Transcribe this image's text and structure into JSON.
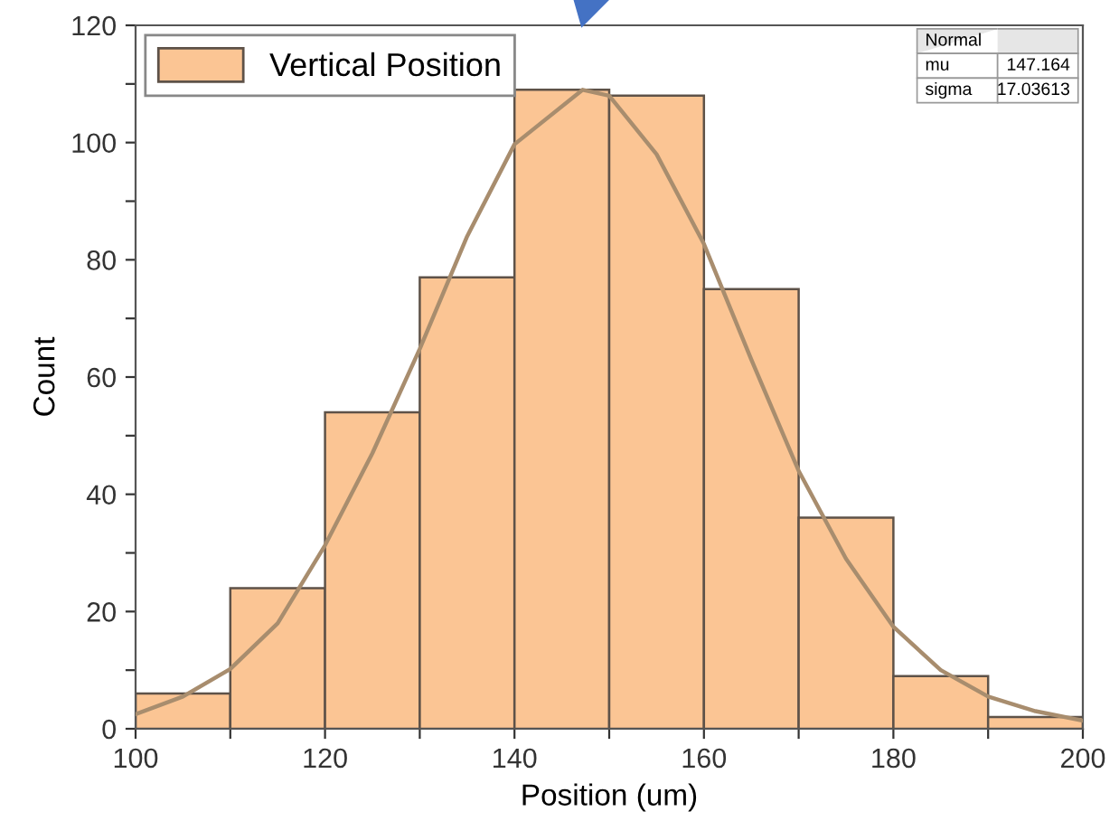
{
  "chart_data": {
    "type": "histogram",
    "xlabel": "Position (um)",
    "ylabel": "Count",
    "bins": [
      100,
      110,
      120,
      130,
      140,
      150,
      160,
      170,
      180,
      190,
      200
    ],
    "series": [
      {
        "name": "Vertical Position",
        "color": "#fbc594",
        "values": [
          6,
          24,
          54,
          77,
          109,
          108,
          75,
          36,
          9,
          2
        ]
      },
      {
        "type": "line",
        "color": "#a88d6e",
        "x": [
          100,
          105,
          110,
          115,
          120,
          125,
          130,
          135,
          140,
          147.2,
          150,
          155,
          160,
          165,
          170,
          175,
          180,
          185,
          190,
          195,
          200
        ],
        "values": [
          2.5,
          5.5,
          10.2,
          18,
          31.3,
          47,
          64.8,
          84,
          99.7,
          109,
          108,
          98,
          82.7,
          63,
          44,
          29,
          17.4,
          10,
          5.5,
          3,
          1.4
        ]
      }
    ],
    "xlim": [
      100,
      200
    ],
    "ylim": [
      0,
      120
    ],
    "xticks": [
      100,
      {
        "value": 110,
        "label": null
      },
      120,
      {
        "value": 130,
        "label": null
      },
      140,
      {
        "value": 150,
        "label": null
      },
      160,
      {
        "value": 170,
        "label": null
      },
      180,
      {
        "value": 190,
        "label": null
      },
      200
    ],
    "yticks": [
      0,
      {
        "value": 10,
        "label": null
      },
      20,
      {
        "value": 30,
        "label": null
      },
      40,
      {
        "value": 50,
        "label": null
      },
      60,
      {
        "value": 70,
        "label": null
      },
      80,
      {
        "value": 90,
        "label": null
      },
      100,
      {
        "value": 110,
        "label": null
      },
      120
    ],
    "legend": "top left",
    "annotations": [
      "Normal",
      "mu",
      "147.164",
      "sigma",
      "17.03613"
    ]
  }
}
